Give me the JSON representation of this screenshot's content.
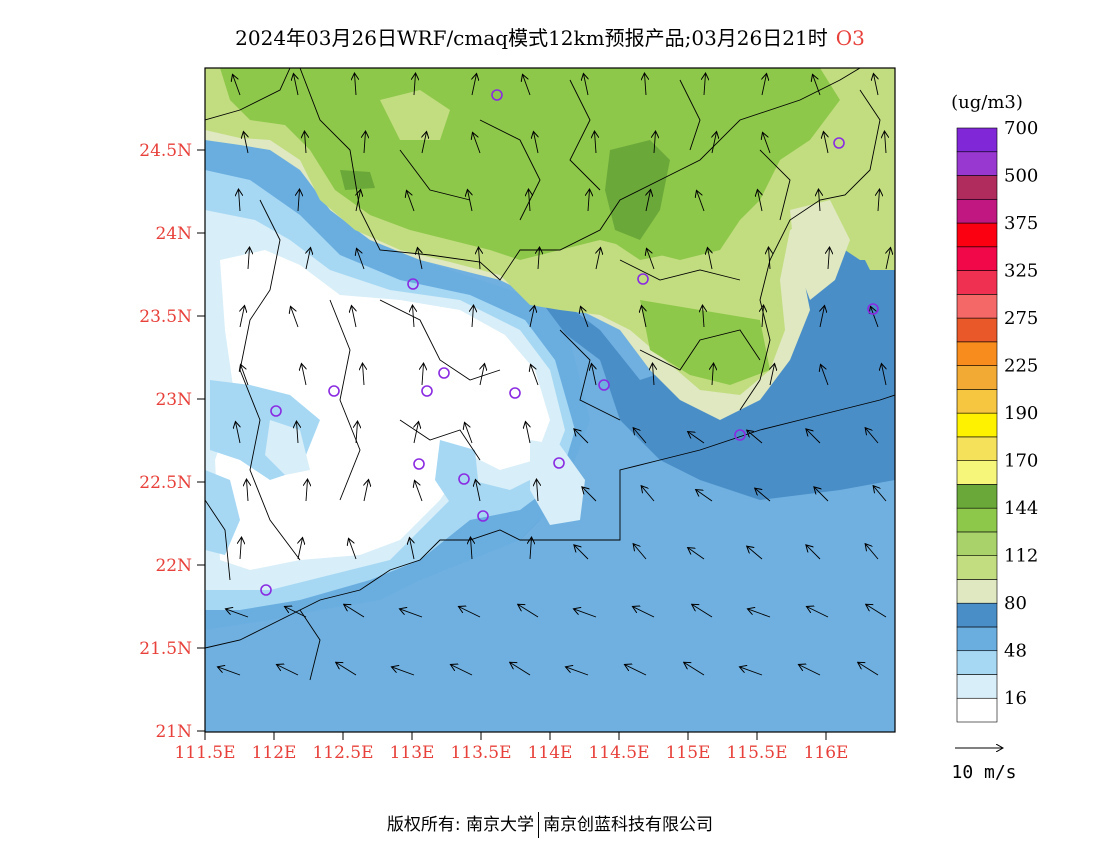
{
  "title": {
    "main": "2024年03月26日WRF/cmaq模式12km预报产品;03月26日21时",
    "variable": "O3"
  },
  "legend": {
    "unit_label": "(ug/m3)",
    "bands_bottom_to_top": [
      "#ffffff",
      "#d8eef8",
      "#a6d8f4",
      "#6aaee0",
      "#4a8ec8",
      "#dfe8c0",
      "#c2dd80",
      "#a9d36a",
      "#8ec84a",
      "#6aa83a",
      "#f6f67a",
      "#f6e15a",
      "#fff200",
      "#f6c640",
      "#f3aa34",
      "#f88c1c",
      "#e85828",
      "#f46868",
      "#f03050",
      "#f00848",
      "#fa0010",
      "#c01880",
      "#b02c5c",
      "#9838d0",
      "#8028d8"
    ],
    "labels": [
      {
        "text": "16",
        "band": 1
      },
      {
        "text": "48",
        "band": 3
      },
      {
        "text": "80",
        "band": 5
      },
      {
        "text": "112",
        "band": 7
      },
      {
        "text": "144",
        "band": 9
      },
      {
        "text": "170",
        "band": 11
      },
      {
        "text": "190",
        "band": 13
      },
      {
        "text": "225",
        "band": 15
      },
      {
        "text": "275",
        "band": 17
      },
      {
        "text": "325",
        "band": 19
      },
      {
        "text": "375",
        "band": 21
      },
      {
        "text": "500",
        "band": 23
      },
      {
        "text": "700",
        "band": 25
      }
    ],
    "wind_reference": "10 m/s"
  },
  "axes": {
    "lat_labels": [
      "21N",
      "21.5N",
      "22N",
      "22.5N",
      "23N",
      "23.5N",
      "24N",
      "24.5N"
    ],
    "lon_labels": [
      "111.5E",
      "112E",
      "112.5E",
      "113E",
      "113.5E",
      "114E",
      "114.5E",
      "115E",
      "115.5E",
      "116E"
    ]
  },
  "map_palette": {
    "sea": "#6fb0e0",
    "coastal_blue": "#4a8ec8",
    "pale_blue": "#a6d8f4",
    "very_pale_blue": "#d8eef8",
    "white": "#ffffff",
    "pale_green": "#dfe8c0",
    "light_green": "#c2dd80",
    "green": "#8ec84a",
    "dark_green": "#6aa83a",
    "station_color": "#8a2be2",
    "axis_label_color": "#e8403a"
  },
  "footer": {
    "left": "版权所有: 南京大学",
    "right": "南京创蓝科技有限公司"
  }
}
